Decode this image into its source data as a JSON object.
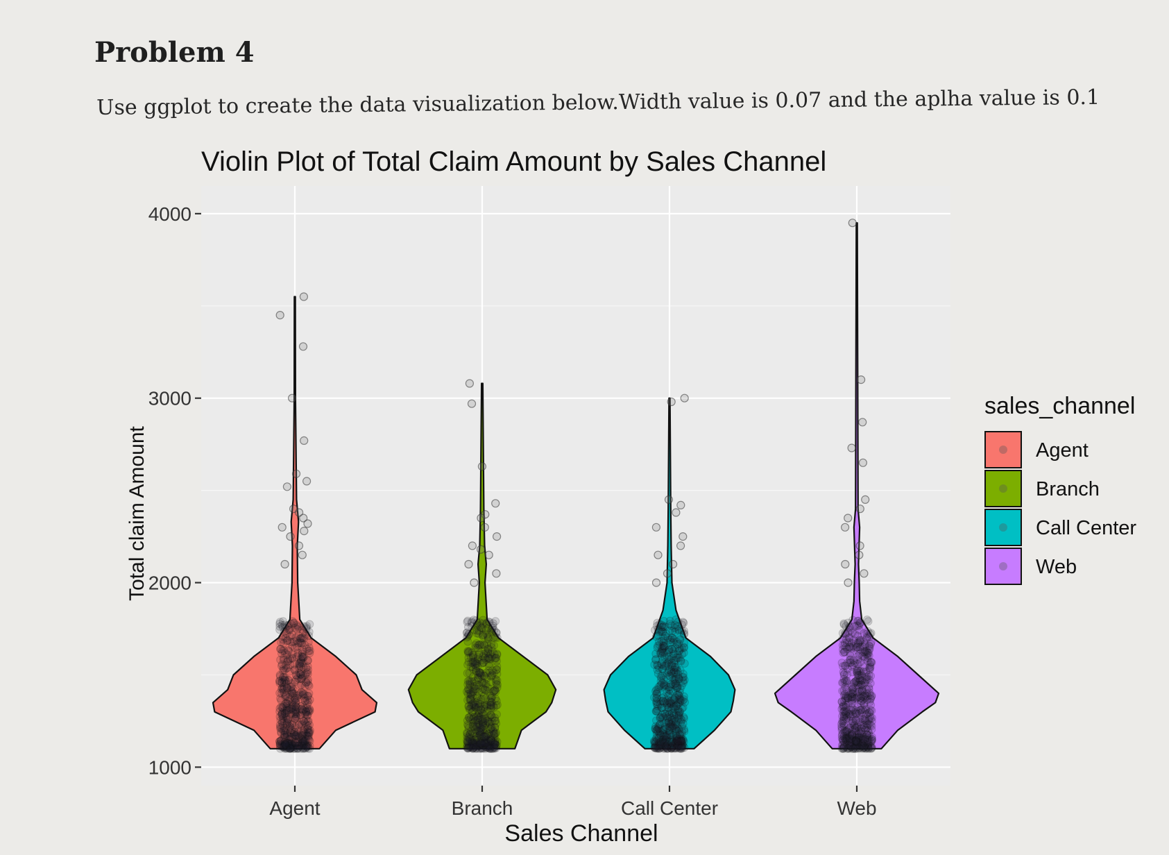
{
  "document": {
    "heading": "Problem 4",
    "instruction": "Use ggplot to create the data visualization below.Width value is 0.07 and the aplha value is 0.1"
  },
  "chart_data": {
    "type": "violin",
    "title": "Violin Plot of Total Claim Amount by Sales Channel",
    "xlabel": "Sales Channel",
    "ylabel": "Total claim Amount",
    "categories": [
      "Agent",
      "Branch",
      "Call Center",
      "Web"
    ],
    "yticks": [
      1000,
      2000,
      3000,
      4000
    ],
    "ylim": [
      1000,
      4000
    ],
    "grid": true,
    "legend": {
      "title": "sales_channel",
      "placement": "right",
      "items": [
        "Agent",
        "Branch",
        "Call Center",
        "Web"
      ]
    },
    "colors": {
      "Agent": "#f8766d",
      "Branch": "#7cae00",
      "Call Center": "#00bfc4",
      "Web": "#c77cff",
      "panel": "#ebebeb",
      "grid": "#ffffff",
      "points": "#1f1f2e"
    },
    "series": [
      {
        "name": "Agent",
        "min": 1100,
        "max": 3550,
        "density": [
          [
            1100,
            0.3
          ],
          [
            1200,
            0.5
          ],
          [
            1300,
            0.98
          ],
          [
            1350,
            1.0
          ],
          [
            1420,
            0.82
          ],
          [
            1500,
            0.75
          ],
          [
            1600,
            0.5
          ],
          [
            1700,
            0.2
          ],
          [
            1800,
            0.06
          ],
          [
            2000,
            0.035
          ],
          [
            2200,
            0.03
          ],
          [
            2330,
            0.045
          ],
          [
            2450,
            0.02
          ],
          [
            3000,
            0.008
          ],
          [
            3550,
            0.006
          ]
        ],
        "outliers": [
          3550,
          3450,
          3280,
          3000,
          2770,
          2590,
          2550,
          2520,
          2400,
          2380,
          2350,
          2320,
          2300,
          2280,
          2250,
          2200,
          2150,
          2100
        ]
      },
      {
        "name": "Branch",
        "min": 1100,
        "max": 3080,
        "density": [
          [
            1100,
            0.4
          ],
          [
            1200,
            0.48
          ],
          [
            1300,
            0.78
          ],
          [
            1350,
            0.85
          ],
          [
            1420,
            0.9
          ],
          [
            1500,
            0.8
          ],
          [
            1600,
            0.5
          ],
          [
            1700,
            0.2
          ],
          [
            1800,
            0.06
          ],
          [
            2000,
            0.035
          ],
          [
            2100,
            0.05
          ],
          [
            2200,
            0.03
          ],
          [
            2400,
            0.02
          ],
          [
            3080,
            0.008
          ]
        ],
        "outliers": [
          3080,
          2970,
          2630,
          2430,
          2370,
          2350,
          2300,
          2250,
          2200,
          2180,
          2150,
          2100,
          2050,
          2000
        ]
      },
      {
        "name": "Call Center",
        "min": 1100,
        "max": 3000,
        "density": [
          [
            1100,
            0.3
          ],
          [
            1200,
            0.55
          ],
          [
            1300,
            0.75
          ],
          [
            1360,
            0.78
          ],
          [
            1420,
            0.8
          ],
          [
            1500,
            0.72
          ],
          [
            1600,
            0.5
          ],
          [
            1700,
            0.2
          ],
          [
            1850,
            0.08
          ],
          [
            2000,
            0.03
          ],
          [
            2200,
            0.02
          ],
          [
            2400,
            0.015
          ],
          [
            3000,
            0.006
          ]
        ],
        "outliers": [
          3000,
          2980,
          2450,
          2420,
          2380,
          2300,
          2250,
          2200,
          2150,
          2100,
          2050,
          2000
        ]
      },
      {
        "name": "Web",
        "min": 1100,
        "max": 3950,
        "density": [
          [
            1100,
            0.3
          ],
          [
            1200,
            0.5
          ],
          [
            1300,
            0.8
          ],
          [
            1350,
            0.96
          ],
          [
            1400,
            1.0
          ],
          [
            1500,
            0.75
          ],
          [
            1600,
            0.5
          ],
          [
            1700,
            0.2
          ],
          [
            1800,
            0.06
          ],
          [
            1900,
            0.035
          ],
          [
            2000,
            0.03
          ],
          [
            2100,
            0.02
          ],
          [
            2300,
            0.035
          ],
          [
            2400,
            0.015
          ],
          [
            3950,
            0.006
          ]
        ],
        "outliers": [
          3950,
          3100,
          2870,
          2730,
          2650,
          2450,
          2400,
          2350,
          2300,
          2200,
          2150,
          2100,
          2050,
          2000
        ]
      }
    ]
  }
}
